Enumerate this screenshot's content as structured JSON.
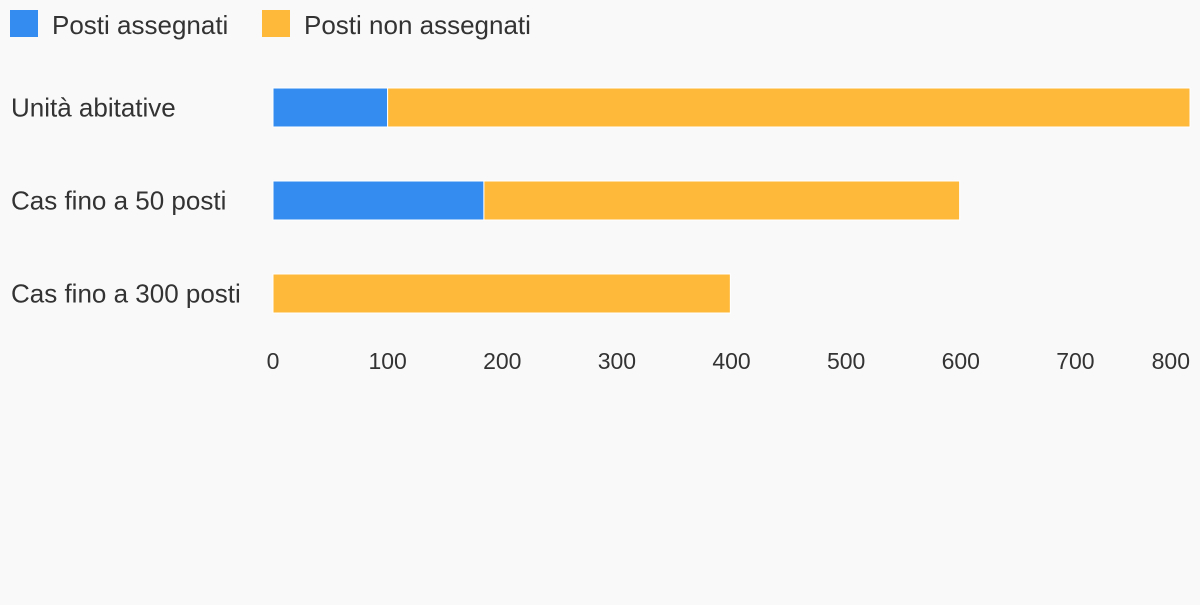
{
  "chart_data": {
    "type": "bar",
    "orientation": "horizontal",
    "stacked": true,
    "categories": [
      "Unità abitative",
      "Cas fino a 50 posti",
      "Cas fino a 300 posti"
    ],
    "series": [
      {
        "name": "Posti assegnati",
        "values": [
          100,
          184,
          0
        ],
        "color": "#348cf0"
      },
      {
        "name": "Posti non assegnati",
        "values": [
          700,
          415,
          399
        ],
        "color": "#ffb93a"
      }
    ],
    "xlim": [
      0,
      800
    ],
    "xticks": [
      0,
      100,
      200,
      300,
      400,
      500,
      600,
      700,
      800
    ],
    "legend_position": "top-left",
    "grid": false
  }
}
